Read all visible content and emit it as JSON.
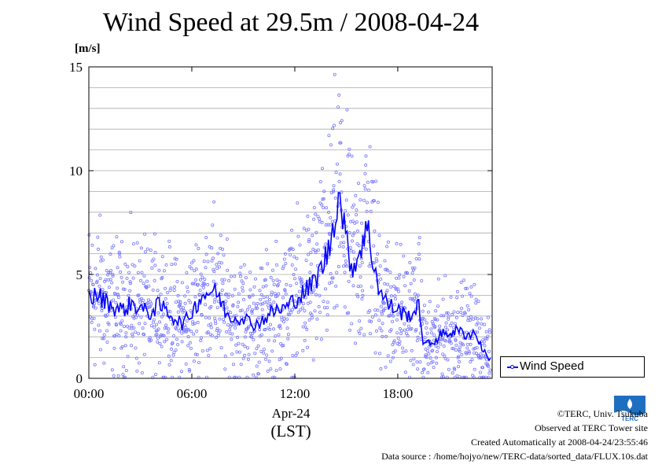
{
  "chart_data": {
    "type": "scatter",
    "title": "Wind Speed at 29.5m / 2008-04-24",
    "ylabel": "[m/s]",
    "xlabel_date": "Apr-24",
    "xlabel_tz": "(LST)",
    "xlim_hours": [
      0,
      23.5
    ],
    "ylim": [
      0,
      15
    ],
    "xticks": [
      {
        "value": 0,
        "label": "00:00"
      },
      {
        "value": 6,
        "label": "06:00"
      },
      {
        "value": 12,
        "label": "12:00"
      },
      {
        "value": 18,
        "label": "18:00"
      }
    ],
    "yticks": [
      {
        "value": 0,
        "label": "0"
      },
      {
        "value": 5,
        "label": "5"
      },
      {
        "value": 10,
        "label": "10"
      },
      {
        "value": 15,
        "label": "15"
      }
    ],
    "grid_y_step": 1,
    "legend": {
      "label": "Wind Speed",
      "position": "right"
    },
    "series": [
      {
        "name": "Wind Speed",
        "color": "#0000ff",
        "point_color": "#7777ff",
        "x": [
          0,
          0.5,
          1,
          1.5,
          2,
          2.5,
          3,
          3.5,
          4,
          4.5,
          5,
          5.5,
          6,
          6.5,
          7,
          7.5,
          8,
          8.5,
          9,
          9.5,
          10,
          10.5,
          11,
          11.5,
          12,
          12.5,
          13,
          13.5,
          14,
          14.25,
          14.5,
          14.75,
          15,
          15.25,
          15.5,
          16,
          16.25,
          16.5,
          17,
          17.5,
          18,
          18.5,
          19,
          19.25,
          19.5,
          20,
          20.5,
          21,
          21.5,
          22,
          22.5,
          23,
          23.4
        ],
        "values": [
          3.9,
          4.0,
          3.7,
          3.4,
          3.3,
          3.6,
          3.4,
          3.1,
          3.5,
          3.3,
          2.9,
          2.6,
          3.2,
          3.9,
          4.2,
          4.1,
          3.1,
          2.9,
          3.0,
          2.6,
          2.7,
          3.1,
          3.3,
          3.4,
          3.8,
          4.1,
          4.5,
          5.2,
          6.2,
          7.5,
          8.8,
          8.3,
          6.5,
          5.6,
          5.4,
          6.8,
          7.2,
          5.9,
          4.1,
          3.5,
          3.3,
          3.0,
          3.2,
          3.5,
          1.6,
          1.7,
          2.1,
          2.2,
          2.3,
          2.1,
          2.2,
          1.3,
          0.9
        ]
      }
    ]
  },
  "legend_label": "Wind Speed",
  "credits": {
    "copyright": "©TERC, Univ. Tsukuba",
    "observed": "Observed at TERC Tower site",
    "created": "Created Automatically at 2008-04-24/23:55:46",
    "source": "Data source : /home/hojyo/new/TERC-data/sorted_data/FLUX.10s.dat"
  },
  "logo_text": "TERC"
}
